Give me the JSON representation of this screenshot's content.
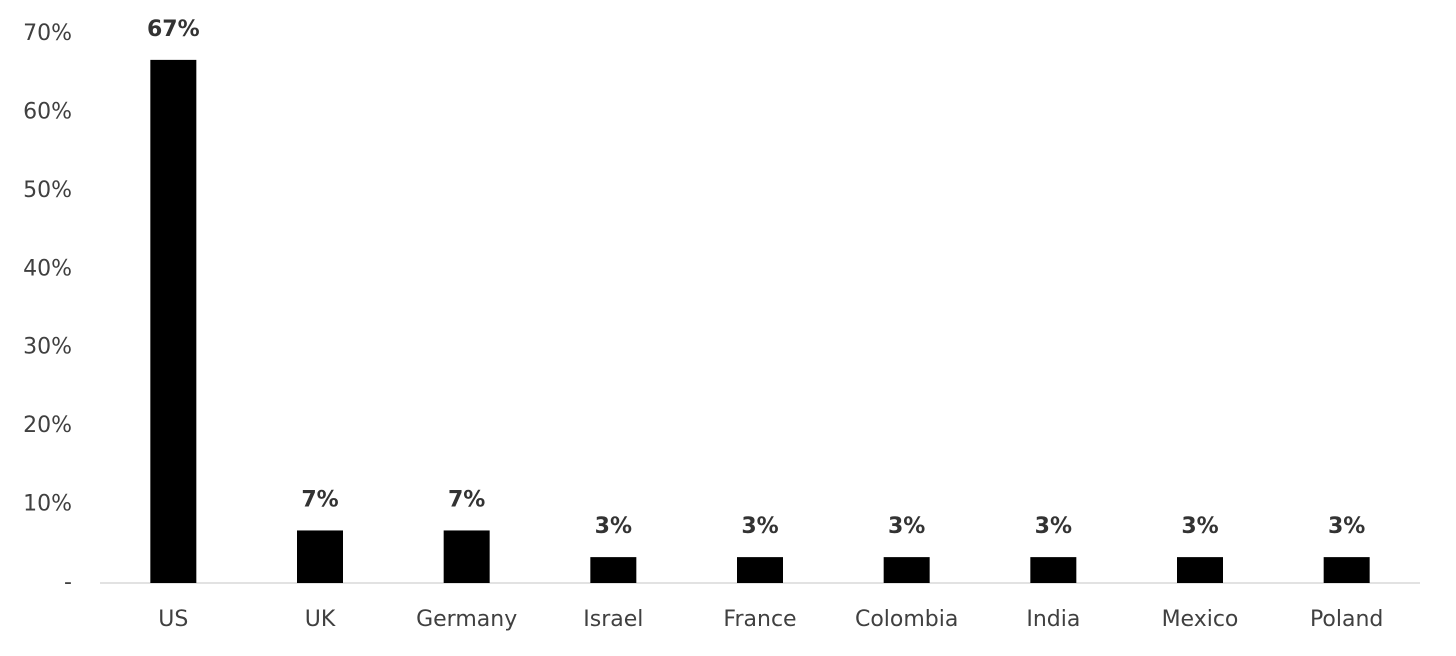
{
  "chart_data": {
    "type": "bar",
    "categories": [
      "US",
      "UK",
      "Germany",
      "Israel",
      "France",
      "Colombia",
      "India",
      "Mexico",
      "Poland"
    ],
    "values": [
      66.7,
      6.7,
      6.7,
      3.3,
      3.3,
      3.3,
      3.3,
      3.3,
      3.3
    ],
    "value_labels": [
      "67%",
      "7%",
      "7%",
      "3%",
      "3%",
      "3%",
      "3%",
      "3%",
      "3%"
    ],
    "color": "#000000",
    "ylim": [
      0,
      70
    ],
    "yticks": [
      {
        "value": 0,
        "label": "-"
      },
      {
        "value": 10,
        "label": "10%"
      },
      {
        "value": 20,
        "label": "20%"
      },
      {
        "value": 30,
        "label": "30%"
      },
      {
        "value": 40,
        "label": "40%"
      },
      {
        "value": 50,
        "label": "50%"
      },
      {
        "value": 60,
        "label": "60%"
      },
      {
        "value": 70,
        "label": "70%"
      }
    ],
    "grid": false
  }
}
